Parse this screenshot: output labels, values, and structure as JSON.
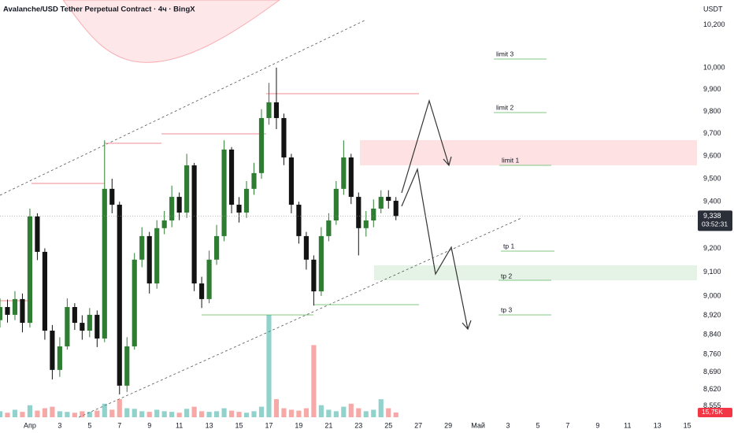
{
  "header": {
    "title": "Avalanche/USD Tether Perpetual Contract · 4ч · BingX",
    "currency": "USDT"
  },
  "chart_data": {
    "type": "candlestick",
    "x": [
      -2,
      -1.5,
      -1,
      -0.5,
      0,
      0.5,
      1,
      1.5,
      2,
      2.5,
      3,
      3.5,
      4,
      4.5,
      5,
      5.5,
      6,
      6.5,
      7,
      7.5,
      8,
      8.5,
      9,
      9.5,
      10,
      10.5,
      11,
      11.5,
      12,
      12.5,
      13,
      13.5,
      14,
      14.5,
      15,
      15.5,
      16,
      16.5,
      17,
      17.5,
      18,
      18.5,
      19,
      19.5,
      20,
      20.5,
      21,
      21.5,
      22,
      22.5,
      23,
      23.5,
      24,
      24.5
    ],
    "open": [
      8900,
      8954,
      8922,
      8987,
      8889,
      9336,
      9185,
      8857,
      8698,
      8793,
      8954,
      8889,
      8857,
      8922,
      8825,
      9456,
      9387,
      8635,
      8793,
      9152,
      9252,
      9052,
      9286,
      9319,
      9421,
      9353,
      9559,
      9052,
      8987,
      9152,
      9252,
      9629,
      9387,
      9353,
      9456,
      9525,
      9770,
      9841,
      9770,
      9594,
      9387,
      9252,
      9152,
      9019,
      9252,
      9319,
      9456,
      9594,
      9421,
      9286,
      9319,
      9370,
      9421,
      9404
    ],
    "high": [
      8990,
      8985,
      9020,
      9010,
      9370,
      9350,
      9200,
      8880,
      8830,
      8990,
      8970,
      8920,
      8950,
      8940,
      9670,
      9500,
      9400,
      8830,
      9180,
      9290,
      9270,
      9320,
      9360,
      9470,
      9440,
      9610,
      9570,
      9080,
      9190,
      9300,
      9670,
      9640,
      9420,
      9490,
      9570,
      9810,
      9930,
      10000,
      9790,
      9610,
      9400,
      9270,
      9170,
      9290,
      9350,
      9490,
      9670,
      9610,
      9440,
      9360,
      9410,
      9450,
      9450,
      9420
    ],
    "low": [
      8870,
      8890,
      8900,
      8850,
      8870,
      9150,
      8820,
      8660,
      8670,
      8780,
      8860,
      8820,
      8830,
      8790,
      8810,
      9350,
      8600,
      8610,
      8780,
      9120,
      9010,
      9030,
      9260,
      9290,
      9320,
      9330,
      9020,
      8950,
      8970,
      9130,
      9230,
      9350,
      9310,
      9330,
      9430,
      9500,
      9740,
      9720,
      9560,
      9350,
      9220,
      9110,
      8960,
      9000,
      9230,
      9300,
      9430,
      9390,
      9170,
      9250,
      9290,
      9350,
      9370,
      9320
    ],
    "close": [
      8954,
      8922,
      8987,
      8889,
      9336,
      9185,
      8857,
      8698,
      8793,
      8954,
      8889,
      8857,
      8922,
      8825,
      9456,
      9387,
      8635,
      8793,
      9152,
      9252,
      9052,
      9286,
      9319,
      9421,
      9353,
      9559,
      9052,
      8987,
      9152,
      9252,
      9629,
      9387,
      9353,
      9456,
      9525,
      9770,
      9841,
      9770,
      9594,
      9387,
      9252,
      9152,
      9019,
      9252,
      9319,
      9456,
      9594,
      9421,
      9286,
      9319,
      9370,
      9421,
      9404,
      9338
    ],
    "volume": [
      20,
      15,
      25,
      18,
      40,
      22,
      30,
      35,
      20,
      18,
      15,
      20,
      18,
      22,
      45,
      25,
      60,
      30,
      28,
      20,
      18,
      25,
      20,
      18,
      15,
      28,
      35,
      20,
      18,
      20,
      30,
      22,
      18,
      15,
      20,
      35,
      340,
      60,
      30,
      25,
      22,
      30,
      240,
      40,
      25,
      20,
      35,
      45,
      30,
      20,
      25,
      60,
      30,
      15.75
    ],
    "up_color": "#2e7d32",
    "down_color": "#131313",
    "volume_up_color": "rgba(38,166,154,0.5)",
    "volume_down_color": "rgba(239,83,80,0.5)",
    "volume_max": 1000,
    "log_scale": true,
    "xlim": [
      -2,
      44.65
    ],
    "ylim": [
      8510,
      10317
    ],
    "xticks": [
      {
        "value": 0,
        "label": "Апр"
      },
      {
        "value": 2,
        "label": "3"
      },
      {
        "value": 4,
        "label": "5"
      },
      {
        "value": 6,
        "label": "7"
      },
      {
        "value": 8,
        "label": "9"
      },
      {
        "value": 10,
        "label": "11"
      },
      {
        "value": 12,
        "label": "13"
      },
      {
        "value": 14,
        "label": "15"
      },
      {
        "value": 16,
        "label": "17"
      },
      {
        "value": 18,
        "label": "19"
      },
      {
        "value": 20,
        "label": "21"
      },
      {
        "value": 22,
        "label": "23"
      },
      {
        "value": 24,
        "label": "25"
      },
      {
        "value": 26,
        "label": "27"
      },
      {
        "value": 28,
        "label": "29"
      },
      {
        "value": 30,
        "label": "Май"
      },
      {
        "value": 32,
        "label": "3"
      },
      {
        "value": 34,
        "label": "5"
      },
      {
        "value": 36,
        "label": "7"
      },
      {
        "value": 38,
        "label": "9"
      },
      {
        "value": 40,
        "label": "11"
      },
      {
        "value": 42,
        "label": "13"
      },
      {
        "value": 44,
        "label": "15"
      }
    ],
    "yticks": [
      {
        "value": 10200,
        "label": "10,200"
      },
      {
        "value": 10000,
        "label": "10,000"
      },
      {
        "value": 9900,
        "label": "9,900"
      },
      {
        "value": 9800,
        "label": "9,800"
      },
      {
        "value": 9700,
        "label": "9,700"
      },
      {
        "value": 9600,
        "label": "9,600"
      },
      {
        "value": 9500,
        "label": "9,500"
      },
      {
        "value": 9400,
        "label": "9,400"
      },
      {
        "value": 9200,
        "label": "9,200"
      },
      {
        "value": 9100,
        "label": "9,100"
      },
      {
        "value": 9000,
        "label": "9,000"
      },
      {
        "value": 8920,
        "label": "8,920"
      },
      {
        "value": 8840,
        "label": "8,840"
      },
      {
        "value": 8760,
        "label": "8,760"
      },
      {
        "value": 8690,
        "label": "8,690"
      },
      {
        "value": 8620,
        "label": "8,620"
      },
      {
        "value": 8555,
        "label": "8,555"
      }
    ],
    "last_price": {
      "value": 9338,
      "label": "9,338"
    },
    "countdown": "03:52:31",
    "last_volume": {
      "value": 15.75,
      "label": "15,75K"
    },
    "annotations": [
      "limit 3",
      "limit 2",
      "limit 1",
      "tp 1",
      "tp 2",
      "tp 3"
    ]
  }
}
